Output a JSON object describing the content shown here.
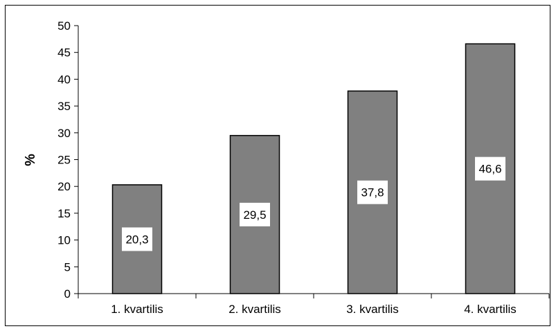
{
  "chart_data": {
    "type": "bar",
    "categories": [
      "1. kvartilis",
      "2. kvartilis",
      "3. kvartilis",
      "4. kvartilis"
    ],
    "values": [
      20.3,
      29.5,
      37.8,
      46.6
    ],
    "value_labels": [
      "20,3",
      "29,5",
      "37,8",
      "46,6"
    ],
    "title": "",
    "xlabel": "",
    "ylabel": "%",
    "ylim": [
      0,
      50
    ],
    "yticks": [
      0,
      5,
      10,
      15,
      20,
      25,
      30,
      35,
      40,
      45,
      50
    ],
    "ytick_labels": [
      "0",
      "5",
      "10",
      "15",
      "20",
      "25",
      "30",
      "35",
      "40",
      "45",
      "50"
    ],
    "grid": false,
    "legend": "none",
    "bar_color": "#808080",
    "label_box_color": "#ffffff"
  }
}
